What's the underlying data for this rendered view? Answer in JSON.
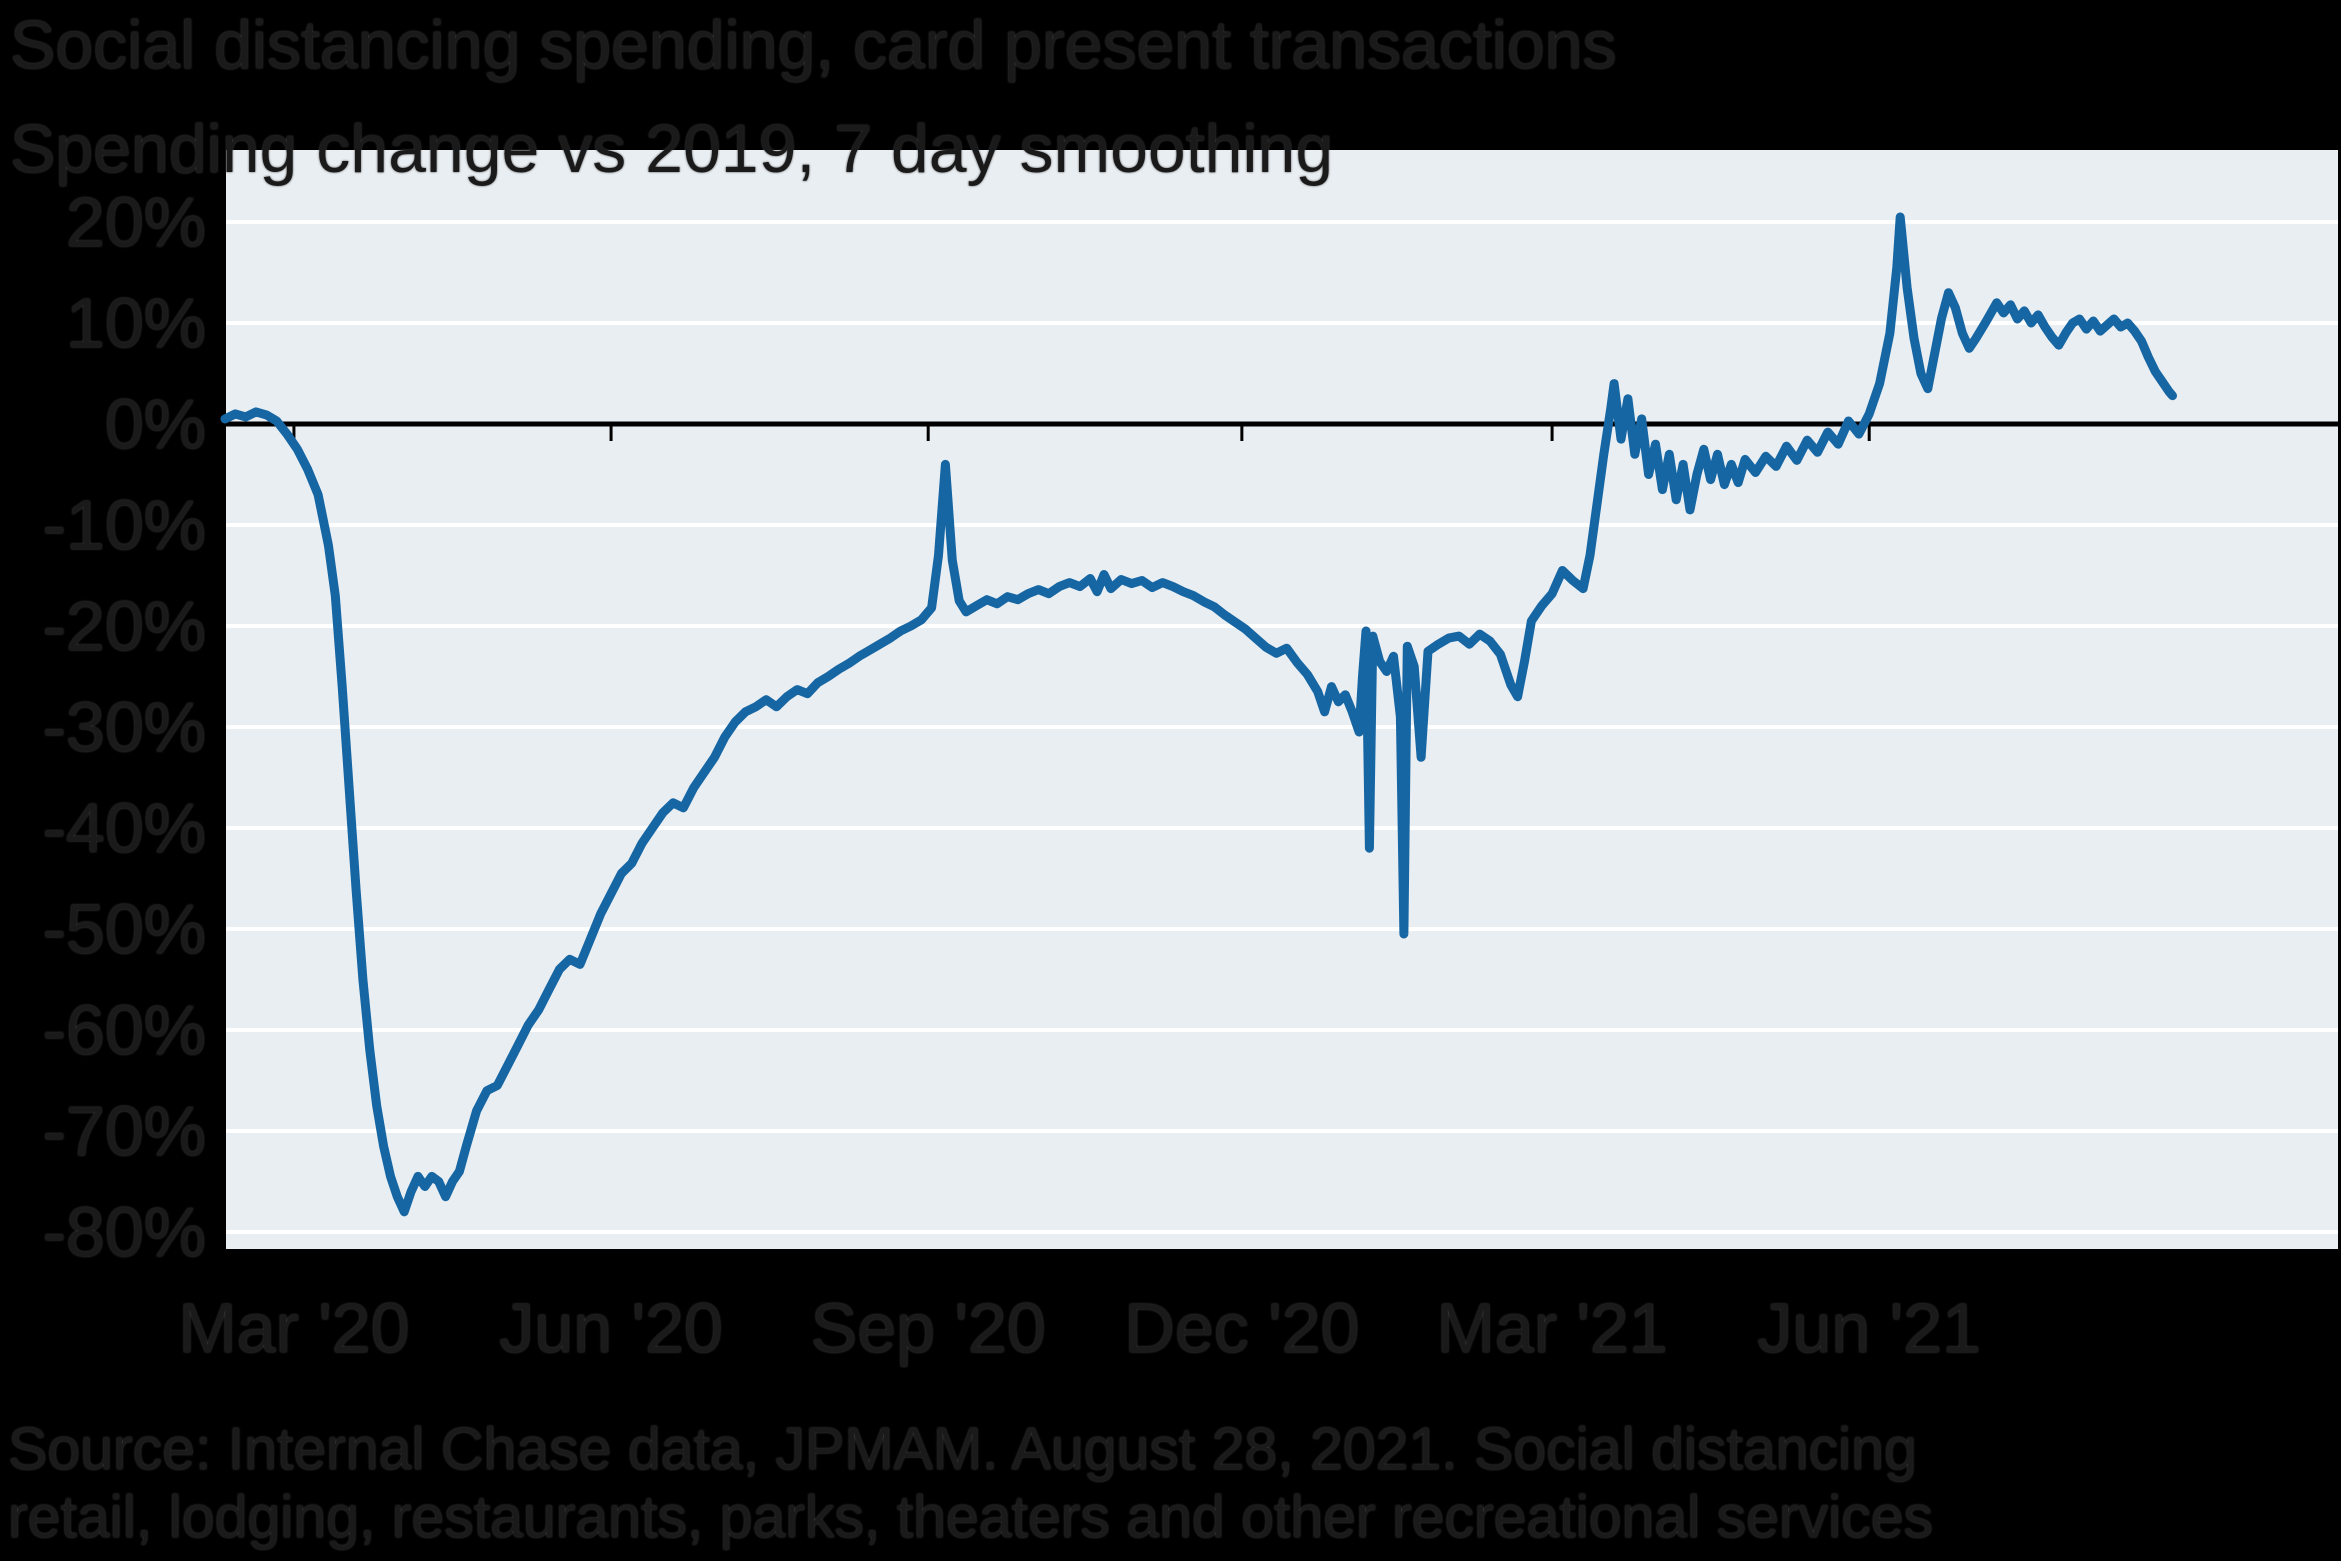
{
  "title": {
    "line1": "Social distancing spending, card present transactions",
    "line2": "Spending change vs 2019, 7 day smoothing"
  },
  "footnote": {
    "line1": "Source: Internal Chase data, JPMAM. August 28, 2021. Social distancing",
    "line2": "retail, lodging, restaurants, parks, theaters and other recreational services"
  },
  "chart_data": {
    "type": "line",
    "title": "Social distancing spending, card present transactions",
    "subtitle": "Spending change vs 2019, 7 day smoothing",
    "xlabel": "",
    "ylabel": "Spending change vs 2019 (%)",
    "ylim": [
      -80,
      20
    ],
    "ytick_step": 10,
    "ytick_labels": [
      "20%",
      "10%",
      "0%",
      "-10%",
      "-20%",
      "-30%",
      "-40%",
      "-50%",
      "-60%",
      "-70%",
      "-80%"
    ],
    "x_domain": [
      "2020-02-10",
      "2021-10-15"
    ],
    "xtick_dates": [
      "2020-03-01",
      "2020-06-01",
      "2020-09-01",
      "2020-12-01",
      "2021-03-01",
      "2021-06-01"
    ],
    "xtick_labels": [
      "Mar '20",
      "Jun '20",
      "Sep '20",
      "Dec '20",
      "Mar '21",
      "Jun '21"
    ],
    "grid": "horizontal",
    "legend": "none",
    "colors": {
      "line": "#1766a4",
      "plot_background": "#e9eef2",
      "gridline": "#ffffff",
      "axis": "#000000",
      "page_background": "#000000",
      "text": "#1a1a1a"
    },
    "series": [
      {
        "name": "Social distancing spending, % change vs 2019, 7-day smoothed",
        "points": [
          [
            "2020-02-10",
            0.5
          ],
          [
            "2020-02-13",
            1.0
          ],
          [
            "2020-02-16",
            0.7
          ],
          [
            "2020-02-19",
            1.2
          ],
          [
            "2020-02-22",
            0.9
          ],
          [
            "2020-02-25",
            0.3
          ],
          [
            "2020-02-28",
            -1.0
          ],
          [
            "2020-03-02",
            -2.5
          ],
          [
            "2020-03-05",
            -4.5
          ],
          [
            "2020-03-08",
            -7
          ],
          [
            "2020-03-11",
            -12
          ],
          [
            "2020-03-13",
            -17
          ],
          [
            "2020-03-15",
            -26
          ],
          [
            "2020-03-17",
            -36
          ],
          [
            "2020-03-19",
            -46
          ],
          [
            "2020-03-21",
            -55
          ],
          [
            "2020-03-23",
            -62
          ],
          [
            "2020-03-25",
            -67.5
          ],
          [
            "2020-03-27",
            -71.5
          ],
          [
            "2020-03-29",
            -74.5
          ],
          [
            "2020-03-31",
            -76.5
          ],
          [
            "2020-04-02",
            -78
          ],
          [
            "2020-04-04",
            -76
          ],
          [
            "2020-04-06",
            -74.5
          ],
          [
            "2020-04-08",
            -75.5
          ],
          [
            "2020-04-10",
            -74.5
          ],
          [
            "2020-04-12",
            -75
          ],
          [
            "2020-04-14",
            -76.5
          ],
          [
            "2020-04-16",
            -75
          ],
          [
            "2020-04-18",
            -74
          ],
          [
            "2020-04-20",
            -71.5
          ],
          [
            "2020-04-23",
            -68
          ],
          [
            "2020-04-26",
            -66
          ],
          [
            "2020-04-29",
            -65.5
          ],
          [
            "2020-05-02",
            -63.5
          ],
          [
            "2020-05-05",
            -61.5
          ],
          [
            "2020-05-08",
            -59.5
          ],
          [
            "2020-05-11",
            -58
          ],
          [
            "2020-05-14",
            -56
          ],
          [
            "2020-05-17",
            -54
          ],
          [
            "2020-05-20",
            -53
          ],
          [
            "2020-05-23",
            -53.5
          ],
          [
            "2020-05-26",
            -51
          ],
          [
            "2020-05-29",
            -48.5
          ],
          [
            "2020-06-01",
            -46.5
          ],
          [
            "2020-06-04",
            -44.5
          ],
          [
            "2020-06-07",
            -43.5
          ],
          [
            "2020-06-10",
            -41.5
          ],
          [
            "2020-06-13",
            -40
          ],
          [
            "2020-06-16",
            -38.5
          ],
          [
            "2020-06-19",
            -37.5
          ],
          [
            "2020-06-22",
            -38
          ],
          [
            "2020-06-25",
            -36
          ],
          [
            "2020-06-28",
            -34.5
          ],
          [
            "2020-07-01",
            -33
          ],
          [
            "2020-07-04",
            -31
          ],
          [
            "2020-07-07",
            -29.5
          ],
          [
            "2020-07-10",
            -28.5
          ],
          [
            "2020-07-13",
            -28
          ],
          [
            "2020-07-16",
            -27.3
          ],
          [
            "2020-07-19",
            -28
          ],
          [
            "2020-07-22",
            -27
          ],
          [
            "2020-07-25",
            -26.3
          ],
          [
            "2020-07-28",
            -26.7
          ],
          [
            "2020-07-31",
            -25.6
          ],
          [
            "2020-08-03",
            -25
          ],
          [
            "2020-08-06",
            -24.3
          ],
          [
            "2020-08-09",
            -23.7
          ],
          [
            "2020-08-12",
            -23
          ],
          [
            "2020-08-15",
            -22.4
          ],
          [
            "2020-08-18",
            -21.8
          ],
          [
            "2020-08-21",
            -21.2
          ],
          [
            "2020-08-24",
            -20.5
          ],
          [
            "2020-08-27",
            -20
          ],
          [
            "2020-08-30",
            -19.4
          ],
          [
            "2020-09-02",
            -18.2
          ],
          [
            "2020-09-04",
            -13
          ],
          [
            "2020-09-06",
            -4
          ],
          [
            "2020-09-08",
            -13.5
          ],
          [
            "2020-09-10",
            -17.5
          ],
          [
            "2020-09-12",
            -18.6
          ],
          [
            "2020-09-15",
            -18
          ],
          [
            "2020-09-18",
            -17.4
          ],
          [
            "2020-09-21",
            -17.8
          ],
          [
            "2020-09-24",
            -17.1
          ],
          [
            "2020-09-27",
            -17.4
          ],
          [
            "2020-09-30",
            -16.8
          ],
          [
            "2020-10-03",
            -16.4
          ],
          [
            "2020-10-06",
            -16.8
          ],
          [
            "2020-10-09",
            -16.1
          ],
          [
            "2020-10-12",
            -15.7
          ],
          [
            "2020-10-15",
            -16.1
          ],
          [
            "2020-10-18",
            -15.3
          ],
          [
            "2020-10-20",
            -16.6
          ],
          [
            "2020-10-22",
            -14.9
          ],
          [
            "2020-10-24",
            -16.3
          ],
          [
            "2020-10-27",
            -15.4
          ],
          [
            "2020-10-30",
            -15.8
          ],
          [
            "2020-11-02",
            -15.5
          ],
          [
            "2020-11-05",
            -16.2
          ],
          [
            "2020-11-08",
            -15.7
          ],
          [
            "2020-11-11",
            -16.1
          ],
          [
            "2020-11-14",
            -16.6
          ],
          [
            "2020-11-17",
            -17
          ],
          [
            "2020-11-20",
            -17.6
          ],
          [
            "2020-11-23",
            -18.1
          ],
          [
            "2020-11-26",
            -18.9
          ],
          [
            "2020-11-29",
            -19.6
          ],
          [
            "2020-12-02",
            -20.3
          ],
          [
            "2020-12-05",
            -21.2
          ],
          [
            "2020-12-08",
            -22.1
          ],
          [
            "2020-12-11",
            -22.7
          ],
          [
            "2020-12-14",
            -22.2
          ],
          [
            "2020-12-17",
            -23.6
          ],
          [
            "2020-12-20",
            -24.8
          ],
          [
            "2020-12-23",
            -26.5
          ],
          [
            "2020-12-25",
            -28.5
          ],
          [
            "2020-12-27",
            -26
          ],
          [
            "2020-12-29",
            -27.5
          ],
          [
            "2020-12-31",
            -26.8
          ],
          [
            "2021-01-02",
            -28.5
          ],
          [
            "2021-01-04",
            -30.5
          ],
          [
            "2021-01-05",
            -25
          ],
          [
            "2021-01-06",
            -20.5
          ],
          [
            "2021-01-07",
            -42
          ],
          [
            "2021-01-08",
            -21
          ],
          [
            "2021-01-10",
            -23.5
          ],
          [
            "2021-01-12",
            -24.5
          ],
          [
            "2021-01-14",
            -23
          ],
          [
            "2021-01-16",
            -29
          ],
          [
            "2021-01-17",
            -50.5
          ],
          [
            "2021-01-18",
            -22
          ],
          [
            "2021-01-20",
            -24
          ],
          [
            "2021-01-22",
            -33
          ],
          [
            "2021-01-24",
            -22.5
          ],
          [
            "2021-01-27",
            -21.8
          ],
          [
            "2021-01-30",
            -21.2
          ],
          [
            "2021-02-02",
            -21
          ],
          [
            "2021-02-05",
            -21.8
          ],
          [
            "2021-02-08",
            -20.8
          ],
          [
            "2021-02-11",
            -21.5
          ],
          [
            "2021-02-14",
            -22.8
          ],
          [
            "2021-02-17",
            -25.8
          ],
          [
            "2021-02-19",
            -27
          ],
          [
            "2021-02-21",
            -23.5
          ],
          [
            "2021-02-23",
            -19.5
          ],
          [
            "2021-02-26",
            -18
          ],
          [
            "2021-03-01",
            -16.8
          ],
          [
            "2021-03-04",
            -14.5
          ],
          [
            "2021-03-07",
            -15.5
          ],
          [
            "2021-03-10",
            -16.3
          ],
          [
            "2021-03-12",
            -13
          ],
          [
            "2021-03-14",
            -8
          ],
          [
            "2021-03-16",
            -3
          ],
          [
            "2021-03-18",
            1.5
          ],
          [
            "2021-03-19",
            4
          ],
          [
            "2021-03-21",
            -1.5
          ],
          [
            "2021-03-23",
            2.5
          ],
          [
            "2021-03-25",
            -3
          ],
          [
            "2021-03-27",
            0.5
          ],
          [
            "2021-03-29",
            -5
          ],
          [
            "2021-03-31",
            -2
          ],
          [
            "2021-04-02",
            -6.5
          ],
          [
            "2021-04-04",
            -3
          ],
          [
            "2021-04-06",
            -7.5
          ],
          [
            "2021-04-08",
            -4
          ],
          [
            "2021-04-10",
            -8.5
          ],
          [
            "2021-04-12",
            -5
          ],
          [
            "2021-04-14",
            -2.5
          ],
          [
            "2021-04-16",
            -5.5
          ],
          [
            "2021-04-18",
            -3
          ],
          [
            "2021-04-20",
            -6
          ],
          [
            "2021-04-22",
            -4
          ],
          [
            "2021-04-24",
            -5.8
          ],
          [
            "2021-04-26",
            -3.5
          ],
          [
            "2021-04-29",
            -4.8
          ],
          [
            "2021-05-02",
            -3.2
          ],
          [
            "2021-05-05",
            -4.2
          ],
          [
            "2021-05-08",
            -2.2
          ],
          [
            "2021-05-11",
            -3.6
          ],
          [
            "2021-05-14",
            -1.6
          ],
          [
            "2021-05-17",
            -2.8
          ],
          [
            "2021-05-20",
            -0.8
          ],
          [
            "2021-05-23",
            -2
          ],
          [
            "2021-05-26",
            0.3
          ],
          [
            "2021-05-29",
            -1
          ],
          [
            "2021-06-01",
            1
          ],
          [
            "2021-06-04",
            4
          ],
          [
            "2021-06-07",
            9
          ],
          [
            "2021-06-09",
            15.5
          ],
          [
            "2021-06-10",
            20.5
          ],
          [
            "2021-06-12",
            13.5
          ],
          [
            "2021-06-14",
            8.5
          ],
          [
            "2021-06-16",
            5
          ],
          [
            "2021-06-18",
            3.5
          ],
          [
            "2021-06-20",
            7
          ],
          [
            "2021-06-22",
            10.5
          ],
          [
            "2021-06-24",
            13
          ],
          [
            "2021-06-26",
            11.5
          ],
          [
            "2021-06-28",
            9
          ],
          [
            "2021-06-30",
            7.5
          ],
          [
            "2021-07-02",
            8.5
          ],
          [
            "2021-07-05",
            10.2
          ],
          [
            "2021-07-08",
            12
          ],
          [
            "2021-07-10",
            11
          ],
          [
            "2021-07-12",
            11.8
          ],
          [
            "2021-07-14",
            10.4
          ],
          [
            "2021-07-16",
            11.2
          ],
          [
            "2021-07-18",
            10
          ],
          [
            "2021-07-20",
            10.8
          ],
          [
            "2021-07-22",
            9.6
          ],
          [
            "2021-07-24",
            8.6
          ],
          [
            "2021-07-26",
            7.8
          ],
          [
            "2021-07-28",
            9
          ],
          [
            "2021-07-30",
            10
          ],
          [
            "2021-08-01",
            10.4
          ],
          [
            "2021-08-03",
            9.4
          ],
          [
            "2021-08-05",
            10.2
          ],
          [
            "2021-08-07",
            9.2
          ],
          [
            "2021-08-09",
            9.8
          ],
          [
            "2021-08-11",
            10.4
          ],
          [
            "2021-08-13",
            9.6
          ],
          [
            "2021-08-15",
            10
          ],
          [
            "2021-08-17",
            9.2
          ],
          [
            "2021-08-19",
            8.2
          ],
          [
            "2021-08-21",
            6.6
          ],
          [
            "2021-08-23",
            5.2
          ],
          [
            "2021-08-25",
            4.2
          ],
          [
            "2021-08-27",
            3.2
          ],
          [
            "2021-08-28",
            2.8
          ]
        ]
      }
    ]
  }
}
